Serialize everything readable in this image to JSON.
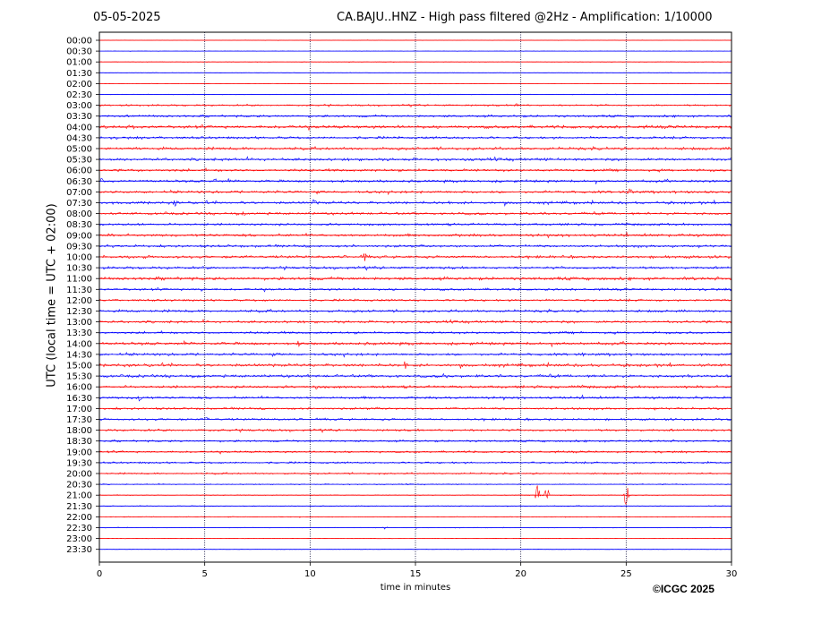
{
  "header": {
    "date": "05-05-2025",
    "title": "CA.BAJU..HNZ - High pass filtered @2Hz - Amplification: 1/10000"
  },
  "footer": {
    "copyright": "©ICGC 2025"
  },
  "chart_data": {
    "type": "line",
    "title": "CA.BAJU..HNZ - High pass filtered @2Hz - Amplification: 1/10000",
    "xlabel": "time in minutes",
    "ylabel": "UTC (local time = UTC + 02:00)",
    "xlim": [
      0,
      30
    ],
    "x_ticks": [
      0,
      5,
      10,
      15,
      20,
      25,
      30
    ],
    "x_tick_labels": [
      "0",
      "5",
      "10",
      "15",
      "20",
      "25",
      "30"
    ],
    "vertical_grid": [
      5,
      10,
      15,
      20,
      25
    ],
    "row_labels": [
      "00:00",
      "00:30",
      "01:00",
      "01:30",
      "02:00",
      "02:30",
      "03:00",
      "03:30",
      "04:00",
      "04:30",
      "05:00",
      "05:30",
      "06:00",
      "06:30",
      "07:00",
      "07:30",
      "08:00",
      "08:30",
      "09:00",
      "09:30",
      "10:00",
      "10:30",
      "11:00",
      "11:30",
      "12:00",
      "12:30",
      "13:00",
      "13:30",
      "14:00",
      "14:30",
      "15:00",
      "15:30",
      "16:00",
      "16:30",
      "17:00",
      "17:30",
      "18:00",
      "18:30",
      "19:00",
      "19:30",
      "20:00",
      "20:30",
      "21:00",
      "21:30",
      "22:00",
      "22:30",
      "23:00",
      "23:30"
    ],
    "row_colors": [
      "#ff0000",
      "#0000ff"
    ],
    "noise_amplitude": [
      0.3,
      0.3,
      0.3,
      0.3,
      0.3,
      0.5,
      1.2,
      1.6,
      2.2,
      1.8,
      2.0,
      2.0,
      1.8,
      1.8,
      1.8,
      2.0,
      1.8,
      1.6,
      2.0,
      1.8,
      2.0,
      1.8,
      2.2,
      1.6,
      1.6,
      1.8,
      1.8,
      1.6,
      2.0,
      1.8,
      2.2,
      2.0,
      1.8,
      1.8,
      1.6,
      1.6,
      1.6,
      1.4,
      1.4,
      1.4,
      1.2,
      0.7,
      0.5,
      0.5,
      0.5,
      0.5,
      0.3,
      0.3
    ],
    "events": [
      {
        "row": 6,
        "minute": 19.8,
        "amplitude": 3
      },
      {
        "row": 8,
        "minute": 1.6,
        "amplitude": 4
      },
      {
        "row": 13,
        "minute": 0.1,
        "amplitude": 4
      },
      {
        "row": 13,
        "minute": 5.5,
        "amplitude": 4
      },
      {
        "row": 14,
        "minute": 25.2,
        "amplitude": 9
      },
      {
        "row": 15,
        "minute": 10.2,
        "amplitude": 5
      },
      {
        "row": 15,
        "minute": 3.6,
        "amplitude": 4
      },
      {
        "row": 16,
        "minute": 6.9,
        "amplitude": 4
      },
      {
        "row": 20,
        "minute": 12.6,
        "amplitude": 6
      },
      {
        "row": 22,
        "minute": 10.1,
        "amplitude": 4
      },
      {
        "row": 23,
        "minute": 4.9,
        "amplitude": 3
      },
      {
        "row": 28,
        "minute": 9.5,
        "amplitude": 5
      },
      {
        "row": 29,
        "minute": 23.0,
        "amplitude": 3
      },
      {
        "row": 30,
        "minute": 14.5,
        "amplitude": 5
      },
      {
        "row": 31,
        "minute": 16.4,
        "amplitude": 5
      },
      {
        "row": 32,
        "minute": 10.3,
        "amplitude": 4
      },
      {
        "row": 33,
        "minute": 1.9,
        "amplitude": 7
      },
      {
        "row": 35,
        "minute": 5.1,
        "amplitude": 3
      },
      {
        "row": 42,
        "minute": 20.8,
        "amplitude": 12
      },
      {
        "row": 42,
        "minute": 21.2,
        "amplitude": 13
      },
      {
        "row": 42,
        "minute": 25.0,
        "amplitude": 14
      },
      {
        "row": 45,
        "minute": 13.6,
        "amplitude": 3
      }
    ]
  }
}
